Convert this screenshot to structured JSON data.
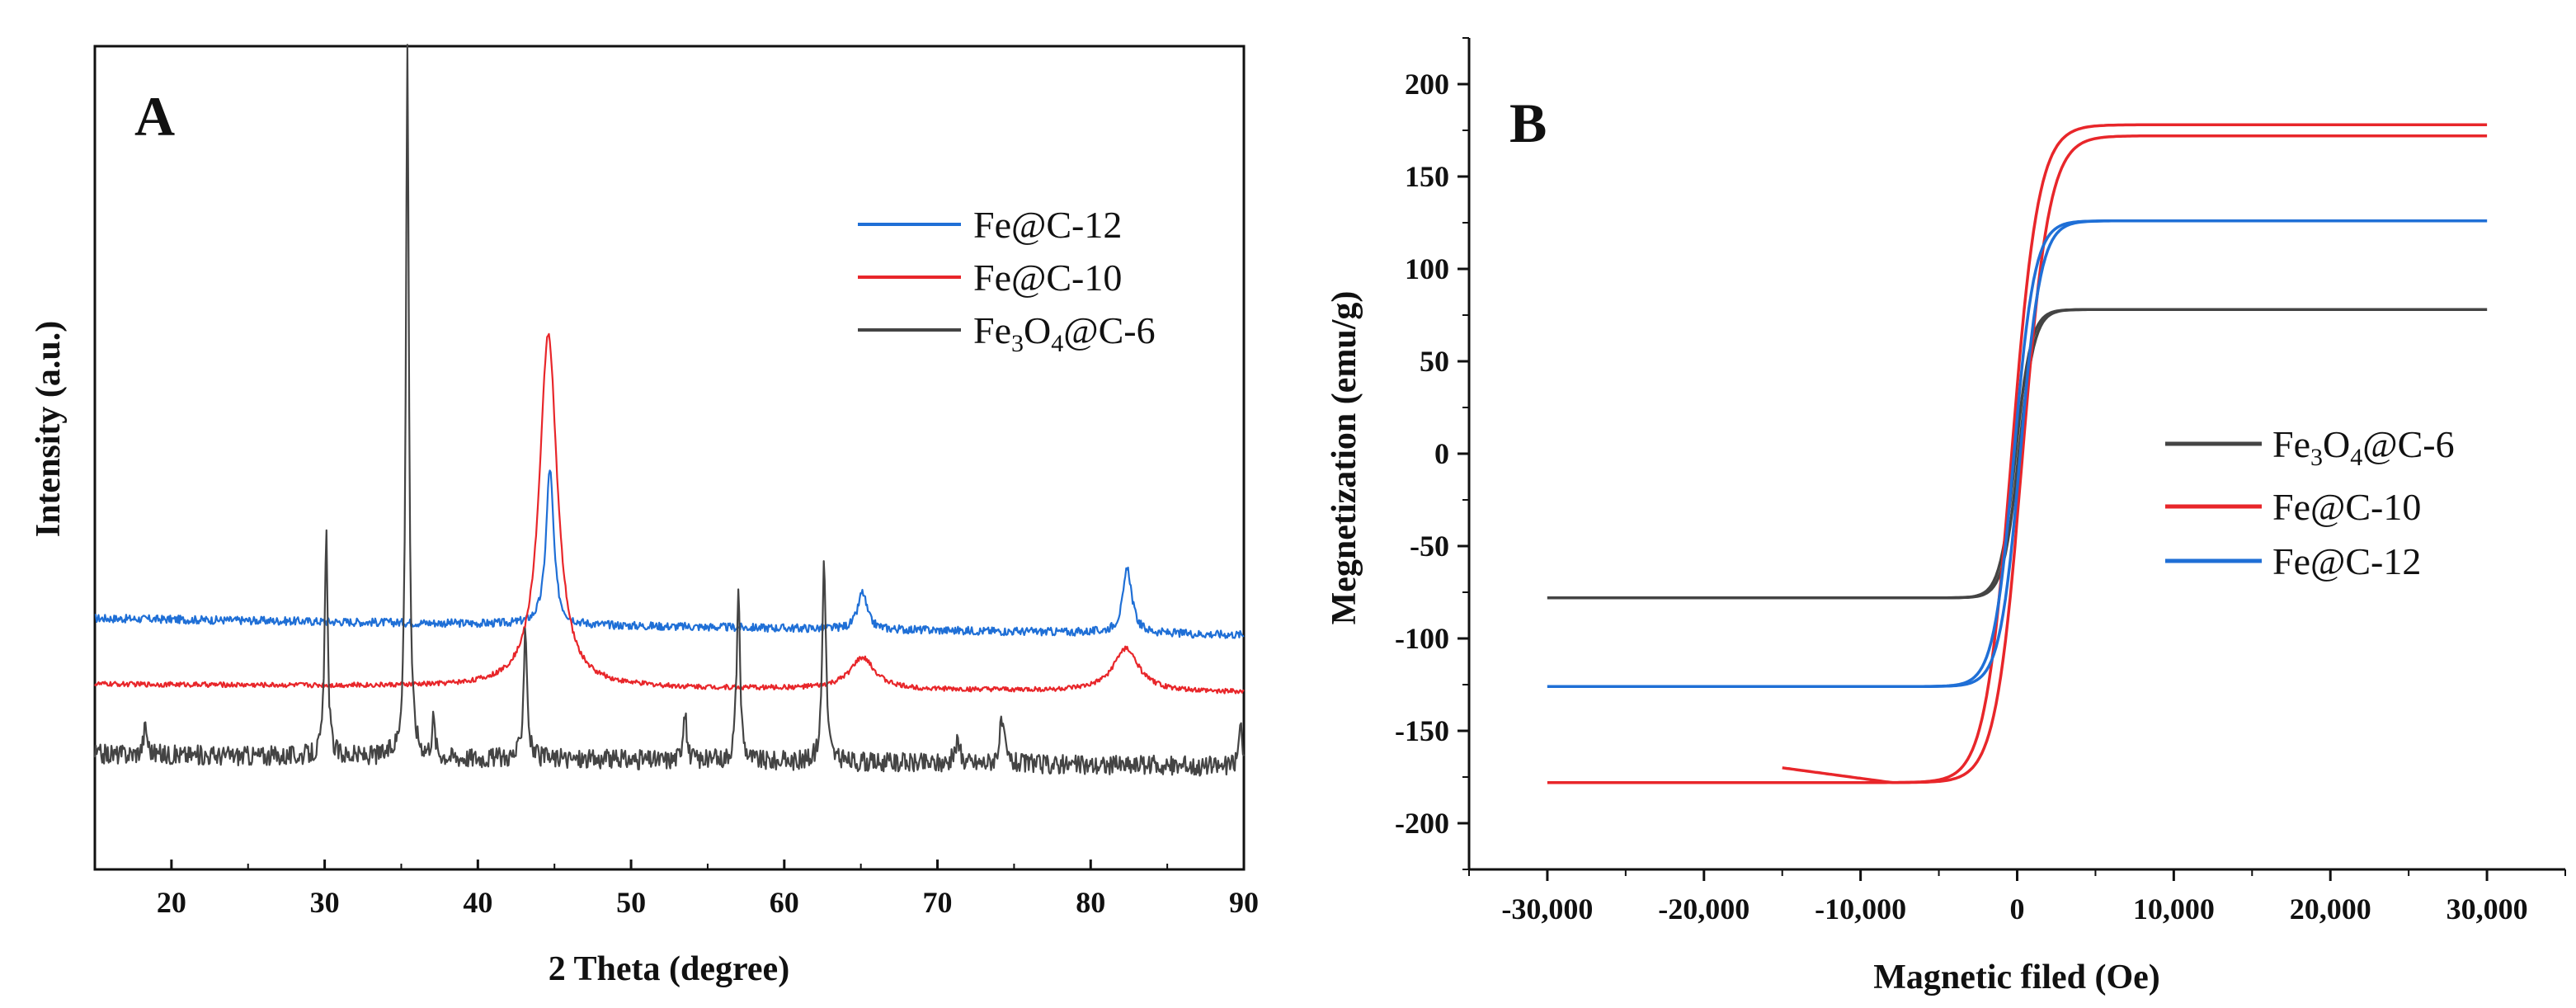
{
  "chart_data": [
    {
      "panel": "A",
      "type": "line",
      "xlabel": "2 Theta (degree)",
      "ylabel": "Intensity (a.u.)",
      "xlim": [
        15,
        90
      ],
      "ylim": [
        0,
        100
      ],
      "xticks": [
        20,
        30,
        40,
        50,
        60,
        70,
        80,
        90
      ],
      "yticks_shown": false,
      "legend": {
        "placement": "top-right",
        "entries": [
          "Fe@C-12",
          "Fe@C-10",
          "Fe3O4@C-6"
        ]
      },
      "series": [
        {
          "name": "Fe@C-12",
          "label_main": "Fe@C-12",
          "color": "#1f6fd6",
          "baseline": [
            [
              15,
              30.5
            ],
            [
              90,
              28.5
            ]
          ],
          "noise": 0.5,
          "peaks": [
            {
              "x": 44.7,
              "h": 19.0,
              "w": 0.3
            },
            {
              "x": 65.1,
              "h": 4.5,
              "w": 0.35
            },
            {
              "x": 82.4,
              "h": 7.8,
              "w": 0.35
            }
          ]
        },
        {
          "name": "Fe@C-10",
          "label_main": "Fe@C-10",
          "color": "#e8262a",
          "baseline": [
            [
              15,
              22.5
            ],
            [
              90,
              21.5
            ]
          ],
          "noise": 0.3,
          "peaks": [
            {
              "x": 44.6,
              "h": 43.0,
              "w": 0.7
            },
            {
              "x": 65.1,
              "h": 3.8,
              "w": 1.0
            },
            {
              "x": 82.3,
              "h": 5.2,
              "w": 1.0
            }
          ]
        },
        {
          "name": "Fe3O4@C-6",
          "label_main": "Fe",
          "label_sub1": "3",
          "label_mid": "O",
          "label_sub2": "4",
          "label_tail": "@C-6",
          "color": "#444444",
          "baseline": [
            [
              15,
              14.0
            ],
            [
              90,
              12.5
            ]
          ],
          "noise": 1.2,
          "peaks": [
            {
              "x": 18.3,
              "h": 3.5,
              "w": 0.15
            },
            {
              "x": 30.1,
              "h": 27.0,
              "w": 0.12
            },
            {
              "x": 35.4,
              "h": 86.0,
              "w": 0.12
            },
            {
              "x": 37.1,
              "h": 4.5,
              "w": 0.12
            },
            {
              "x": 43.1,
              "h": 16.0,
              "w": 0.14
            },
            {
              "x": 53.5,
              "h": 6.0,
              "w": 0.14
            },
            {
              "x": 57.0,
              "h": 20.0,
              "w": 0.14
            },
            {
              "x": 62.6,
              "h": 25.0,
              "w": 0.14
            },
            {
              "x": 71.3,
              "h": 2.5,
              "w": 0.2
            },
            {
              "x": 74.2,
              "h": 5.0,
              "w": 0.2
            },
            {
              "x": 89.8,
              "h": 5.0,
              "w": 0.15
            }
          ]
        }
      ]
    },
    {
      "panel": "B",
      "type": "line",
      "xlabel": "Magnetic filed (Oe)",
      "ylabel": "Megnetization (emu/g)",
      "xlim": [
        -35000,
        35000
      ],
      "ylim": [
        -225,
        225
      ],
      "xticks": [
        -30000,
        -20000,
        -10000,
        0,
        10000,
        20000,
        30000
      ],
      "xtick_labels": [
        "-30,000",
        "-20,000",
        "-10,000",
        "0",
        "10,000",
        "20,000",
        "30,000"
      ],
      "yticks": [
        -200,
        -150,
        -100,
        -50,
        0,
        50,
        100,
        150,
        200
      ],
      "ytick_labels": [
        "-200",
        "-150",
        "-100",
        "-50",
        "0",
        "50",
        "100",
        "150",
        "200"
      ],
      "legend": {
        "placement": "center-right",
        "entries": [
          "Fe3O4@C-6",
          "Fe@C-10",
          "Fe@C-12"
        ]
      },
      "series": [
        {
          "name": "Fe3O4@C-6",
          "label_main": "Fe",
          "label_sub1": "3",
          "label_mid": "O",
          "label_sub2": "4",
          "label_tail": "@C-6",
          "color": "#444444",
          "ms": 78,
          "hc": 100,
          "k": 1000,
          "xmin": -30000,
          "xmax": 30000
        },
        {
          "name": "Fe@C-10",
          "label_main": "Fe@C-10",
          "color": "#e8262a",
          "ms": 178,
          "ms_lower": 172,
          "hc": 350,
          "k": 1700,
          "xmin": -30000,
          "xmax": 30000,
          "tail_start": -15000,
          "tail_value": -170
        },
        {
          "name": "Fe@C-12",
          "label_main": "Fe@C-12",
          "color": "#1f6fd6",
          "ms": 126,
          "hc": 200,
          "k": 1300,
          "xmin": -30000,
          "xmax": 30000
        }
      ]
    }
  ]
}
